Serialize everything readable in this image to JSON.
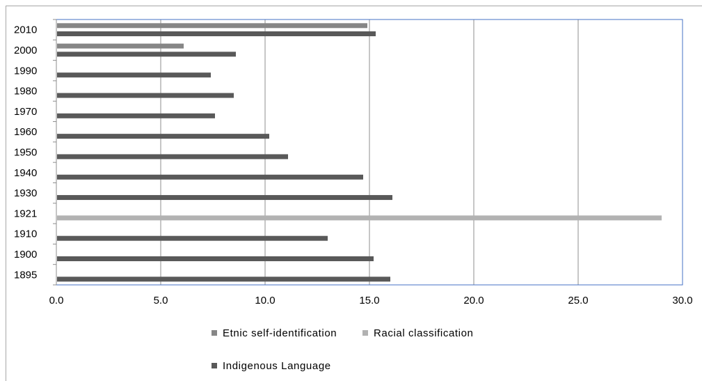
{
  "chart_data": {
    "type": "bar",
    "orientation": "horizontal",
    "categories": [
      "1895",
      "1900",
      "1910",
      "1921",
      "1930",
      "1940",
      "1950",
      "1960",
      "1970",
      "1980",
      "1990",
      "2000",
      "2010"
    ],
    "series": [
      {
        "name": "Etnic self-identification",
        "color": "#868686",
        "values": [
          null,
          null,
          null,
          null,
          null,
          null,
          null,
          null,
          null,
          null,
          null,
          6.1,
          14.9
        ]
      },
      {
        "name": "Racial classification",
        "color": "#b2b2b2",
        "values": [
          null,
          null,
          null,
          29.0,
          null,
          null,
          null,
          null,
          null,
          null,
          null,
          null,
          null
        ]
      },
      {
        "name": "Indigenous Language",
        "color": "#595959",
        "values": [
          16.0,
          15.2,
          13.0,
          null,
          16.1,
          14.7,
          11.1,
          10.2,
          7.6,
          8.5,
          7.4,
          8.6,
          15.3
        ]
      }
    ],
    "xlim": [
      0,
      30
    ],
    "x_ticks": [
      "0.0",
      "5.0",
      "10.0",
      "15.0",
      "20.0",
      "25.0",
      "30.0"
    ],
    "grid": "vertical",
    "legend_position": "bottom"
  }
}
